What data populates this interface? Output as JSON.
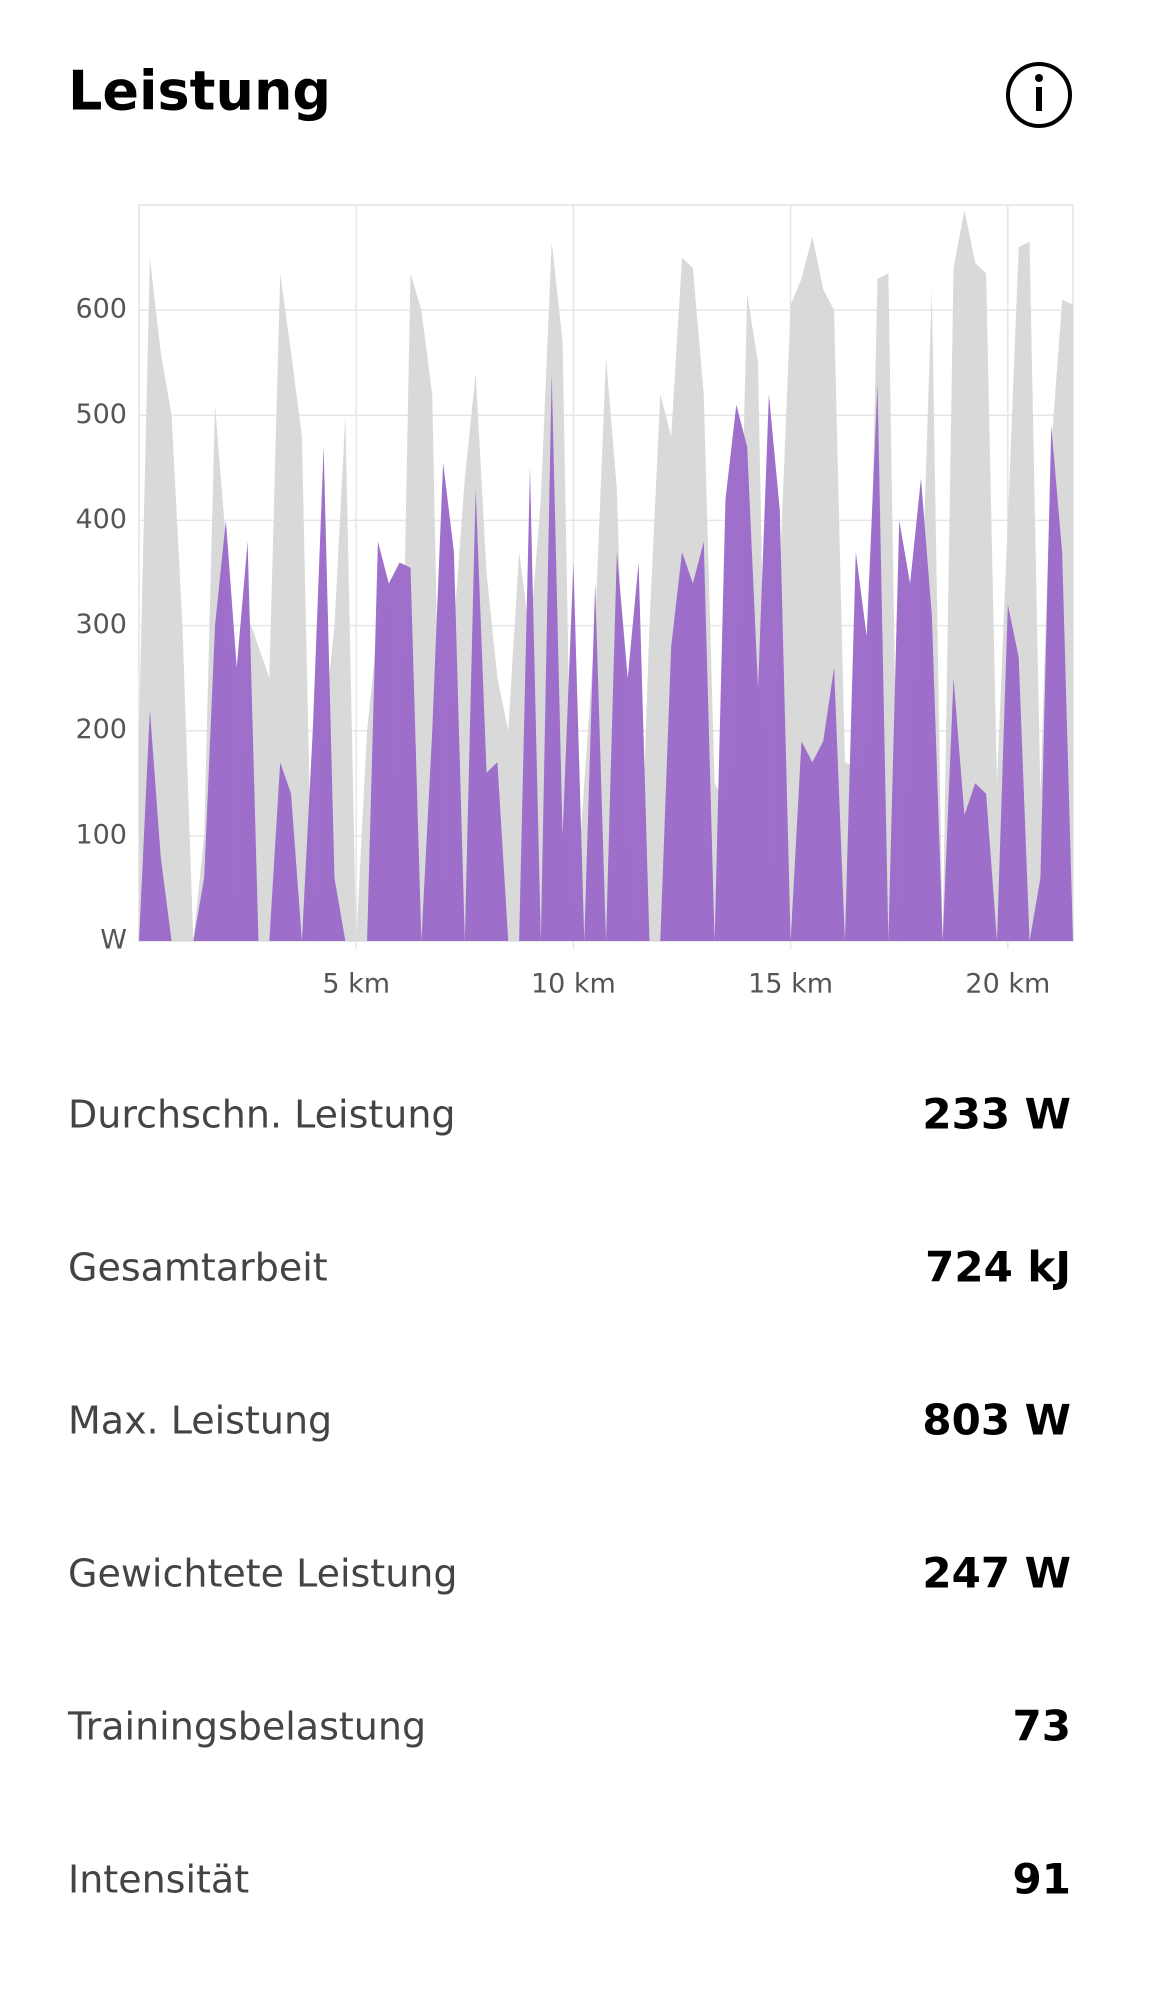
{
  "header": {
    "title": "Leistung"
  },
  "chart_data": {
    "type": "area",
    "x": [
      0,
      0.25,
      0.5,
      0.75,
      1,
      1.25,
      1.5,
      1.75,
      2,
      2.25,
      2.5,
      2.75,
      3,
      3.25,
      3.5,
      3.75,
      4,
      4.25,
      4.5,
      4.75,
      5,
      5.25,
      5.5,
      5.75,
      6,
      6.25,
      6.5,
      6.75,
      7,
      7.25,
      7.5,
      7.75,
      8,
      8.25,
      8.5,
      8.75,
      9,
      9.25,
      9.5,
      9.75,
      10,
      10.25,
      10.5,
      10.75,
      11,
      11.25,
      11.5,
      11.75,
      12,
      12.25,
      12.5,
      12.75,
      13,
      13.25,
      13.5,
      13.75,
      14,
      14.25,
      14.5,
      14.75,
      15,
      15.25,
      15.5,
      15.75,
      16,
      16.25,
      16.5,
      16.75,
      17,
      17.25,
      17.5,
      17.75,
      18,
      18.25,
      18.5,
      18.75,
      19,
      19.25,
      19.5,
      19.75,
      20,
      20.25,
      20.5,
      20.75,
      21,
      21.25,
      21.5
    ],
    "xlim": [
      0,
      21.5
    ],
    "xticks": [
      {
        "value": 5,
        "label": "5 km"
      },
      {
        "value": 10,
        "label": "10 km"
      },
      {
        "value": 15,
        "label": "15 km"
      },
      {
        "value": 20,
        "label": "20 km"
      }
    ],
    "ylim": [
      0,
      700
    ],
    "yticks": [
      {
        "value": 0,
        "label": "W"
      },
      100,
      200,
      300,
      400,
      500,
      600
    ],
    "grid": true,
    "series": [
      {
        "color": "#d9d9d9",
        "values": [
          200,
          650,
          560,
          500,
          300,
          0,
          100,
          510,
          380,
          0,
          310,
          280,
          250,
          635,
          560,
          480,
          0,
          200,
          300,
          500,
          0,
          200,
          300,
          330,
          100,
          635,
          600,
          520,
          0,
          300,
          440,
          540,
          350,
          250,
          200,
          370,
          290,
          420,
          665,
          570,
          0,
          150,
          300,
          555,
          430,
          100,
          0,
          300,
          520,
          480,
          650,
          640,
          520,
          150,
          130,
          190,
          615,
          550,
          0,
          350,
          605,
          630,
          670,
          620,
          600,
          170,
          165,
          170,
          630,
          635,
          0,
          200,
          300,
          620,
          0,
          640,
          695,
          645,
          635,
          150,
          400,
          660,
          665,
          140,
          470,
          610,
          605
        ]
      },
      {
        "color": "#9b6bc9",
        "values": [
          0,
          220,
          80,
          0,
          0,
          0,
          60,
          300,
          400,
          260,
          380,
          0,
          0,
          170,
          140,
          0,
          200,
          470,
          60,
          0,
          0,
          0,
          380,
          340,
          360,
          355,
          0,
          200,
          455,
          370,
          0,
          430,
          160,
          170,
          0,
          0,
          450,
          0,
          540,
          100,
          360,
          0,
          340,
          0,
          370,
          250,
          360,
          0,
          0,
          280,
          370,
          340,
          380,
          0,
          420,
          510,
          470,
          240,
          520,
          410,
          0,
          190,
          170,
          190,
          260,
          0,
          370,
          290,
          530,
          0,
          400,
          340,
          440,
          310,
          0,
          250,
          120,
          150,
          140,
          0,
          320,
          270,
          0,
          60,
          490,
          370,
          0
        ]
      }
    ]
  },
  "stats": {
    "rows": [
      {
        "label": "Durchschn. Leistung",
        "value": "233 W"
      },
      {
        "label": "Gesamtarbeit",
        "value": "724 kJ"
      },
      {
        "label": "Max. Leistung",
        "value": "803 W"
      },
      {
        "label": "Gewichtete Leistung",
        "value": "247 W"
      },
      {
        "label": "Trainingsbelastung",
        "value": "73"
      },
      {
        "label": "Intensität",
        "value": "91"
      }
    ]
  }
}
